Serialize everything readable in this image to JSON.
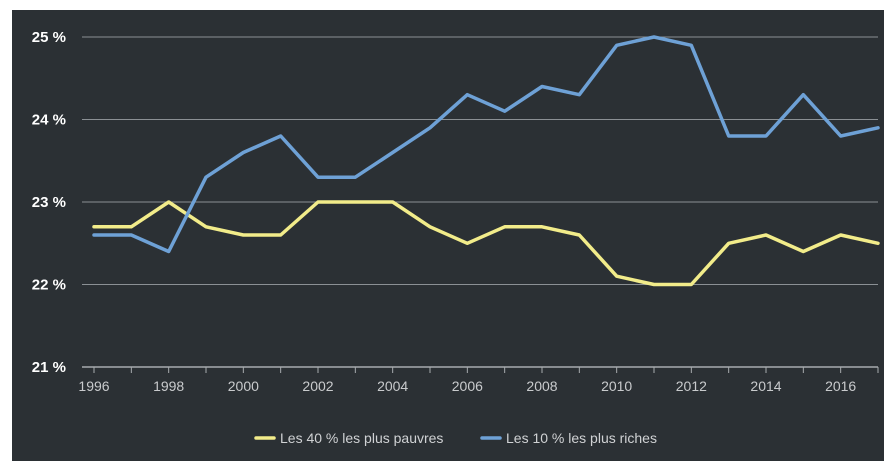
{
  "chart_data": {
    "type": "line",
    "x": [
      1996,
      1997,
      1998,
      1999,
      2000,
      2001,
      2002,
      2003,
      2004,
      2005,
      2006,
      2007,
      2008,
      2009,
      2010,
      2011,
      2012,
      2013,
      2014,
      2015,
      2016,
      2017
    ],
    "x_tick_labels": [
      "1996",
      "1998",
      "2000",
      "2002",
      "2004",
      "2006",
      "2008",
      "2010",
      "2012",
      "2014",
      "2016"
    ],
    "x_tick_values": [
      1996,
      1998,
      2000,
      2002,
      2004,
      2006,
      2008,
      2010,
      2012,
      2014,
      2016
    ],
    "y_tick_labels": [
      "21 %",
      "22 %",
      "23 %",
      "24 %",
      "25 %"
    ],
    "y_tick_values": [
      21,
      22,
      23,
      24,
      25
    ],
    "ylim": [
      21,
      25
    ],
    "xlim": [
      1996,
      2017
    ],
    "grid": true,
    "legend_position": "bottom",
    "series": [
      {
        "name": "Les 40 % les plus pauvres",
        "color": "#f2ec8a",
        "values": [
          22.7,
          22.7,
          23.0,
          22.7,
          22.6,
          22.6,
          23.0,
          23.0,
          23.0,
          22.7,
          22.5,
          22.7,
          22.7,
          22.6,
          22.1,
          22.0,
          22.0,
          22.5,
          22.6,
          22.4,
          22.6,
          22.5
        ]
      },
      {
        "name": "Les 10 % les plus riches",
        "color": "#6ea1d6",
        "values": [
          22.6,
          22.6,
          22.4,
          23.3,
          23.6,
          23.8,
          23.3,
          23.3,
          23.6,
          23.9,
          24.3,
          24.1,
          24.4,
          24.3,
          24.9,
          25.0,
          24.9,
          23.8,
          23.8,
          24.3,
          23.8,
          23.9
        ]
      }
    ]
  }
}
